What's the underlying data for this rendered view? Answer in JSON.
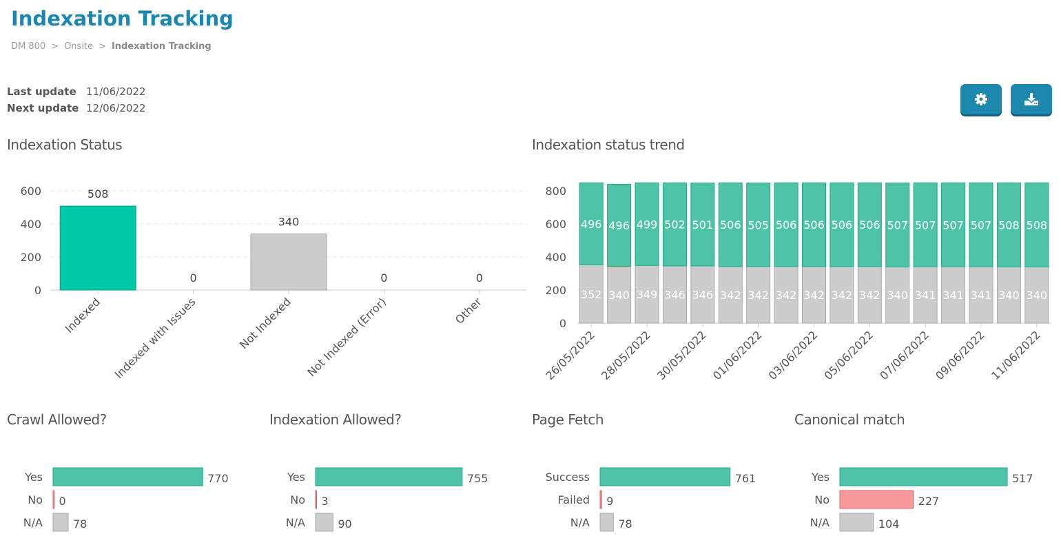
{
  "header": {
    "title": "Indexation Tracking",
    "breadcrumb": [
      "DM 800",
      "Onsite",
      "Indexation Tracking"
    ],
    "separator": ">"
  },
  "updates": {
    "last_label": "Last update",
    "last_value": "11/06/2022",
    "next_label": "Next update",
    "next_value": "12/06/2022"
  },
  "toolbar": {
    "settings_icon": "gear-icon",
    "download_icon": "download-icon"
  },
  "colors": {
    "green": "#4fc3a8",
    "bright_green": "#00c9a7",
    "grey": "#cccccc",
    "red": "#f7999b",
    "orange": "#f0c89a",
    "accent": "#1a87b0"
  },
  "chart_data": [
    {
      "id": "status",
      "type": "bar",
      "title": "Indexation Status",
      "categories": [
        "Indexed",
        "Indexed with Issues",
        "Not Indexed",
        "Not Indexed (Error)",
        "Other"
      ],
      "values": [
        508,
        0,
        340,
        0,
        0
      ],
      "ylim": [
        0,
        600
      ],
      "yticks": [
        0,
        200,
        400,
        600
      ],
      "grid": true
    },
    {
      "id": "trend",
      "type": "bar",
      "stacked": true,
      "title": "Indexation status trend",
      "categories": [
        "26/05/2022",
        "27/05/2022",
        "28/05/2022",
        "29/05/2022",
        "30/05/2022",
        "31/05/2022",
        "01/06/2022",
        "02/06/2022",
        "03/06/2022",
        "04/06/2022",
        "05/06/2022",
        "06/06/2022",
        "07/06/2022",
        "08/06/2022",
        "09/06/2022",
        "10/06/2022",
        "11/06/2022"
      ],
      "xtick_labels": [
        "26/05/2022",
        "28/05/2022",
        "30/05/2022",
        "01/06/2022",
        "03/06/2022",
        "05/06/2022",
        "07/06/2022",
        "09/06/2022",
        "11/06/2022"
      ],
      "series": [
        {
          "values": [
            352,
            340,
            349,
            346,
            346,
            342,
            342,
            342,
            342,
            342,
            342,
            340,
            341,
            341,
            341,
            340,
            340
          ]
        },
        {
          "values": [
            0,
            4,
            0,
            0,
            0,
            0,
            0,
            0,
            0,
            0,
            0,
            0,
            0,
            0,
            0,
            0,
            0
          ]
        },
        {
          "values": [
            496,
            496,
            499,
            502,
            501,
            506,
            505,
            506,
            506,
            506,
            506,
            507,
            507,
            507,
            507,
            508,
            508
          ]
        }
      ],
      "ylim": [
        0,
        800
      ],
      "yticks": [
        0,
        200,
        400,
        600,
        800
      ],
      "grid": true
    },
    {
      "id": "crawl",
      "type": "bar",
      "orientation": "horizontal",
      "title": "Crawl Allowed?",
      "categories": [
        "Yes",
        "No",
        "N/A"
      ],
      "values": [
        770,
        0,
        78
      ]
    },
    {
      "id": "indexallowed",
      "type": "bar",
      "orientation": "horizontal",
      "title": "Indexation Allowed?",
      "categories": [
        "Yes",
        "No",
        "N/A"
      ],
      "values": [
        755,
        3,
        90
      ]
    },
    {
      "id": "fetch",
      "type": "bar",
      "orientation": "horizontal",
      "title": "Page Fetch",
      "categories": [
        "Success",
        "Failed",
        "N/A"
      ],
      "values": [
        761,
        9,
        78
      ]
    },
    {
      "id": "canonical",
      "type": "bar",
      "orientation": "horizontal",
      "title": "Canonical match",
      "categories": [
        "Yes",
        "No",
        "N/A"
      ],
      "values": [
        517,
        227,
        104
      ]
    }
  ]
}
